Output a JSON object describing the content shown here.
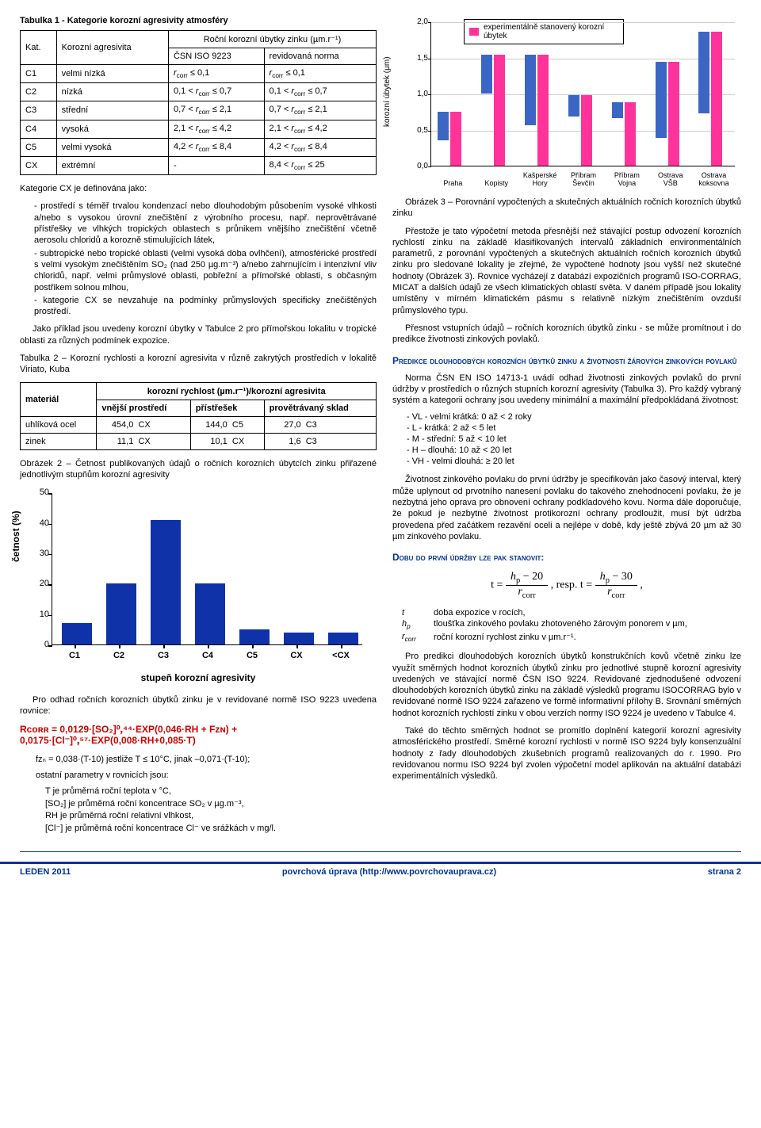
{
  "table1": {
    "title": "Tabulka 1 - Kategorie korozní agresivity atmosféry",
    "head_kat": "Kat.",
    "head_agr": "Korozní agresivita",
    "head_main": "Roční korozní úbytky zinku (µm.r⁻¹)",
    "head_csn": "ČSN ISO 9223",
    "head_rev": "revidovaná norma",
    "rows": [
      {
        "k": "C1",
        "a": "velmi nízká",
        "c": "rᶜᵒʳʳ ≤ 0,1",
        "r": "rᶜᵒʳʳ ≤ 0,1"
      },
      {
        "k": "C2",
        "a": "nízká",
        "c": "0,1 < rᶜᵒʳʳ ≤ 0,7",
        "r": "0,1 < rᶜᵒʳʳ ≤ 0,7"
      },
      {
        "k": "C3",
        "a": "střední",
        "c": "0,7 < rᶜᵒʳʳ ≤ 2,1",
        "r": "0,7 < rᶜᵒʳʳ ≤ 2,1"
      },
      {
        "k": "C4",
        "a": "vysoká",
        "c": "2,1 < rᶜᵒʳʳ ≤ 4,2",
        "r": "2,1 < rᶜᵒʳʳ ≤ 4,2"
      },
      {
        "k": "C5",
        "a": "velmi vysoká",
        "c": "4,2 < rᶜᵒʳʳ ≤ 8,4",
        "r": "4,2 < rᶜᵒʳʳ ≤ 8,4"
      },
      {
        "k": "CX",
        "a": "extrémní",
        "c": "-",
        "r": "8,4 < rᶜᵒʳʳ ≤ 25"
      }
    ]
  },
  "chart3": {
    "legend": "experimentálně stanovený korozní úbytek",
    "ylabel": "korozní úbytek (μm)",
    "ylim": [
      0,
      2.0
    ],
    "ytick_step": 0.5,
    "yticks": [
      "0,0",
      "0,5",
      "1,0",
      "1,5",
      "2,0"
    ],
    "categories": [
      "Praha",
      "Kopisty",
      "Kašperské Hory",
      "Příbram Ševčín",
      "Příbram Vojna",
      "Ostrava VŠB",
      "Ostrava koksovna"
    ],
    "blue": [
      0.4,
      0.54,
      0.98,
      0.3,
      0.22,
      1.05,
      1.14
    ],
    "pink": [
      0.75,
      1.54,
      1.54,
      0.98,
      0.88,
      1.44,
      1.86
    ],
    "blue_color": "#3b66c4",
    "pink_color": "#ff3399",
    "bg": "#ffffff"
  },
  "text": {
    "cx_intro": "Kategorie CX je definována jako:",
    "cx_b1": "prostředí s téměř trvalou kondenzací nebo dlouhodobým působením vysoké vlhkosti a/nebo s vysokou úrovní znečištění z výrobního procesu, např. neprovětrávané přístřešky ve vlhkých tropických oblastech s průnikem vnějšího znečištění včetně aerosolu chloridů a korozně stimulujících látek,",
    "cx_b2": "subtropické nebo tropické oblasti (velmi vysoká doba ovlhčení), atmosférické prostředí s velmi vysokým znečištěním SO₂ (nad 250 µg.m⁻³) a/nebo zahrnujícím i intenzivní vliv chloridů, např. velmi průmyslové oblasti, pobřežní a přímořské oblasti, s občasným postřikem solnou mlhou,",
    "cx_b3": "kategorie CX se nevzahuje na podmínky průmyslových specificky znečištěných prostředí.",
    "ex_para": "Jako příklad jsou uvedeny korozní úbytky v Tabulce 2 pro přímořskou lokalitu v tropické oblasti za různých podmínek expozice.",
    "t2_title": "Tabulka 2 – Korozní rychlosti a korozní agresivita v různě zakrytých prostředích v lokalitě Viriato, Kuba",
    "chart2_title": "Obrázek 2 – Četnost publikovaných údajů o ročních korozních úbytcích zinku přiřazené jednotlivým stupňům korozní agresivity",
    "est_para": "Pro odhad ročních korozních úbytků zinku je v revidované normě ISO 9223 uvedena rovnice:",
    "formula_red1": "Rᴄᴏʀʀ = 0,0129·[SO₂]⁰ꓹ⁴⁴·EXP(0,046·RH + Fᴢɴ) +",
    "formula_red2": "0,0175·[Cl⁻]⁰ꓹ⁵⁷·EXP(0,008·RH+0,085·T)",
    "fzn": "fᴢₙ = 0,038·(T-10) jestliže T ≤ 10°C, jinak –0,071·(T-10);",
    "param_intro": "ostatní parametry v rovnicích jsou:",
    "param_T": "T je průměrná roční teplota v °C,",
    "param_SO2": "[SO₂] je průměrná roční koncentrace SO₂ v µg.m⁻³,",
    "param_RH": "RH  je průměrná roční relativní vlhkost,",
    "param_Cl": "[Cl⁻] je průměrná roční koncentrace Cl⁻ ve srážkách v mg/l.",
    "obr3_title": "Obrázek 3 – Porovnání vypočtených a skutečných aktuálních ročních korozních úbytků zinku",
    "right_p1": "Přestože je tato výpočetní metoda přesnější než stávající postup odvození korozních rychlostí zinku na základě klasifikovaných intervalů základních environmentálních parametrů, z porovnání vypočtených a skutečných aktuálních ročních korozních úbytků zinku pro sledované lokality je zřejmé, že vypočtené hodnoty jsou vyšší než skutečné hodnoty (Obrázek 3). Rovnice vycházejí z databází expozičních programů ISO-CORRAG, MICAT a dalších údajů ze všech klimatických oblastí světa. V daném případě jsou lokality umístěny v mírném klimatickém pásmu s relativně nízkým znečištěním ovzduší průmyslového typu.",
    "right_p2": "Přesnost vstupních údajů – ročních korozních úbytků zinku - se může promítnout i do predikce životnosti zinkových povlaků.",
    "h2_pred": "Predikce dlouhodobých korozních úbytků zinku a životnosti žárových zinkových povlaků",
    "right_p3": "Norma ČSN EN ISO 14713-1 uvádí odhad životnosti zinkových povlaků do první údržby v prostředích o různých stupních korozní agresivity (Tabulka 3). Pro každý vybraný systém a kategorii ochrany jsou uvedeny minimální a maximální předpokládaná životnost:",
    "cat_VL": "- VL - velmi krátká:  0 až < 2 roky",
    "cat_L": "- L - krátká:              2 až < 5 let",
    "cat_M": "- M - střední:            5 až < 10 let",
    "cat_H": "- H – dlouhá:           10 až < 20 let",
    "cat_VH": "- VH - velmi dlouhá: ≥ 20 let",
    "right_p4": "Životnost zinkového povlaku do první údržby je specifikován jako časový interval, který může uplynout od prvotního nanesení povlaku do takového znehodnocení povlaku, že je nezbytná jeho oprava pro obnovení ochrany podkladového kovu. Norma dále doporučuje, že pokud je nezbytné životnost protikorozní ochrany prodloužit, musí být údržba provedena před začátkem rezavění oceli a nejlépe v době, kdy ještě zbývá 20 µm až 30 µm zinkového povlaku.",
    "h2_doba": "Dobu do první údržby lze pak stanovit:",
    "var_t": "doba expozice v rocích,",
    "var_hp": "tloušťka zinkového povlaku zhotoveného žárovým ponorem v µm,",
    "var_rcorr": "roční korozní rychlost zinku v µm.r⁻¹.",
    "right_p5": "Pro predikci dlouhodobých korozních úbytků konstrukčních kovů včetně zinku lze využít směrných hodnot korozních úbytků zinku pro jednotlivé stupně korozní agresivity uvedených ve stávající normě ČSN ISO 9224. Revidované zjednodušené odvození dlouhodobých korozních úbytků zinku na základě výsledků programu ISOCORRAG bylo v revidované normě ISO 9224 zařazeno ve formě informativní přílohy B. Srovnání směrných hodnot korozních rychlostí zinku v obou verzích normy ISO 9224 je uvedeno v Tabulce 4.",
    "right_p6": "Také do těchto směrných hodnot se promítlo doplnění kategorií korozní agresivity atmosférického prostředí. Směrné korozní rychlosti v normě ISO 9224 byly konsenzuální hodnoty z řady dlouhodobých zkušebních programů realizovaných do r. 1990. Pro revidovanou normu ISO 9224 byl zvolen výpočetní model aplikován na aktuální databázi experimentálních výsledků."
  },
  "table2": {
    "head_mat": "materiál",
    "head_main": "korozní rychlost (µm.r⁻¹)/korozní agresivita",
    "head_c1": "vnější prostředí",
    "head_c2": "přístřešek",
    "head_c3": "provětrávaný sklad",
    "rows": [
      {
        "m": "uhlíková ocel",
        "v1": "454,0",
        "a1": "CX",
        "v2": "144,0",
        "a2": "C5",
        "v3": "27,0",
        "a3": "C3"
      },
      {
        "m": "zinek",
        "v1": "11,1",
        "a1": "CX",
        "v2": "10,1",
        "a2": "CX",
        "v3": "1,6",
        "a3": "C3"
      }
    ]
  },
  "chart2": {
    "ylabel": "četnost (%)",
    "xlabel": "stupeň korozní agresivity",
    "ylim": [
      0,
      50
    ],
    "ytick_step": 10,
    "categories": [
      "C1",
      "C2",
      "C3",
      "C4",
      "C5",
      "CX",
      "<CX"
    ],
    "values": [
      7,
      20,
      41,
      20,
      5,
      4,
      4
    ],
    "bar_color": "#1032a8",
    "bg": "#ffffff"
  },
  "footer": {
    "left": "LEDEN 2011",
    "mid": "povrchová úprava (http://www.povrchovauprava.cz)",
    "right": "strana 2"
  }
}
